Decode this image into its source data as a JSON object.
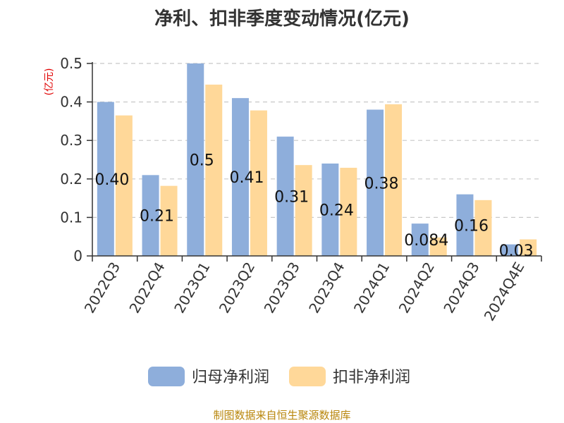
{
  "chart_data": {
    "type": "bar",
    "title": "净利、扣非季度变动情况(亿元)",
    "unit_label": "(亿元)",
    "categories": [
      "2022Q3",
      "2022Q4",
      "2023Q1",
      "2023Q2",
      "2023Q3",
      "2023Q4",
      "2024Q1",
      "2024Q2",
      "2024Q3",
      "2024Q4E"
    ],
    "series": [
      {
        "name": "归母净利润",
        "color": "#8eaedb",
        "values": [
          0.4,
          0.21,
          0.5,
          0.41,
          0.31,
          0.24,
          0.38,
          0.084,
          0.16,
          0.03
        ],
        "labels": [
          "0.40",
          "0.21",
          "0.5",
          "0.41",
          "0.31",
          "0.24",
          "0.38",
          "0.084",
          "0.16",
          "0.03"
        ]
      },
      {
        "name": "扣非净利润",
        "color": "#ffd899",
        "values": [
          0.365,
          0.182,
          0.445,
          0.378,
          0.236,
          0.229,
          0.394,
          0.048,
          0.145,
          0.043
        ]
      }
    ],
    "ylim": [
      0,
      0.5
    ],
    "yticks": [
      0,
      0.1,
      0.2,
      0.3,
      0.4,
      0.5
    ],
    "ytick_labels": [
      "0",
      "0.1",
      "0.2",
      "0.3",
      "0.4",
      "0.5"
    ],
    "grid": true,
    "legend": "bottom-center"
  },
  "footer": {
    "source": "制图数据来自恒生聚源数据库"
  }
}
